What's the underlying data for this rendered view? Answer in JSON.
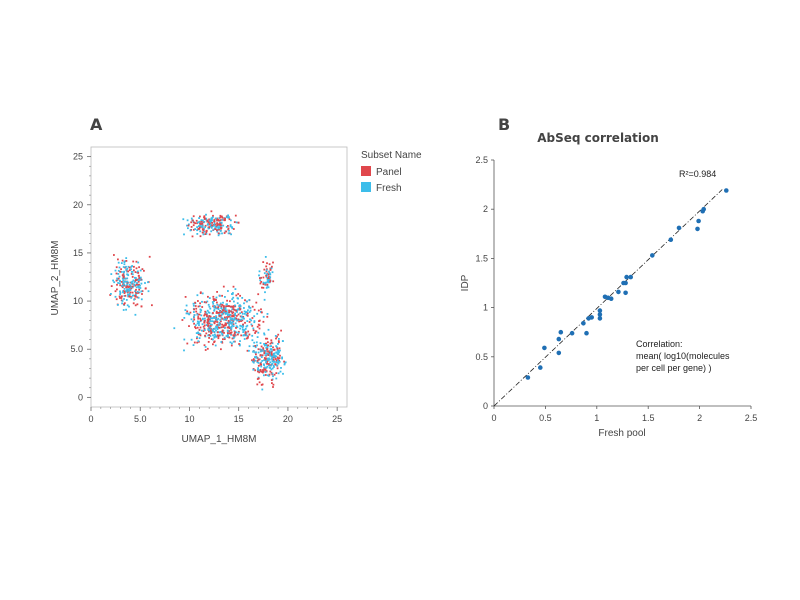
{
  "panels": {
    "a_label": "A",
    "b_label": "B"
  },
  "chart_data": [
    {
      "type": "scatter",
      "title": "",
      "xlabel": "UMAP_1_HM8M",
      "ylabel": "UMAP_2_HM8M",
      "xlim": [
        0,
        26
      ],
      "ylim": [
        -1,
        26
      ],
      "xticks": [
        0,
        5,
        10,
        15,
        20,
        25
      ],
      "xtick_labels": [
        "0",
        "5.0",
        "10",
        "15",
        "20",
        "25"
      ],
      "yticks": [
        0,
        5,
        10,
        15,
        20,
        25
      ],
      "ytick_labels": [
        "0",
        "5.0",
        "10",
        "15",
        "20",
        "25"
      ],
      "legend": {
        "title": "Subset Name",
        "position": "right",
        "entries": [
          {
            "name": "Panel",
            "color": "#e0474c"
          },
          {
            "name": "Fresh",
            "color": "#3cbdea"
          }
        ]
      },
      "clusters": [
        {
          "cx": 3.9,
          "cy": 11.8,
          "sx": 1.4,
          "sy": 2.0,
          "n": 260
        },
        {
          "cx": 12.2,
          "cy": 17.9,
          "sx": 2.1,
          "sy": 0.9,
          "n": 230
        },
        {
          "cx": 13.5,
          "cy": 8.0,
          "sx": 3.1,
          "sy": 2.2,
          "n": 650
        },
        {
          "cx": 18.0,
          "cy": 4.0,
          "sx": 1.3,
          "sy": 2.0,
          "n": 280
        },
        {
          "cx": 17.9,
          "cy": 12.5,
          "sx": 0.6,
          "sy": 1.3,
          "n": 70
        }
      ]
    },
    {
      "type": "scatter",
      "title": "AbSeq correlation",
      "xlabel": "Fresh pool",
      "ylabel": "IDP",
      "xlim": [
        0,
        2.5
      ],
      "ylim": [
        0,
        2.5
      ],
      "xticks": [
        0,
        0.5,
        1,
        1.5,
        2,
        2.5
      ],
      "xtick_labels": [
        "0",
        "0.5",
        "1",
        "1.5",
        "2",
        "2.5"
      ],
      "yticks": [
        0,
        0.5,
        1,
        1.5,
        2,
        2.5
      ],
      "ytick_labels": [
        "0",
        "0.5",
        "1",
        "1.5",
        "2",
        "2.5"
      ],
      "point_color": "#1f6fb4",
      "points": [
        [
          0.33,
          0.29
        ],
        [
          0.45,
          0.39
        ],
        [
          0.49,
          0.59
        ],
        [
          0.63,
          0.54
        ],
        [
          0.63,
          0.68
        ],
        [
          0.65,
          0.75
        ],
        [
          0.76,
          0.74
        ],
        [
          0.87,
          0.84
        ],
        [
          0.9,
          0.74
        ],
        [
          0.92,
          0.89
        ],
        [
          0.95,
          0.9
        ],
        [
          1.03,
          0.89
        ],
        [
          1.03,
          0.93
        ],
        [
          1.03,
          0.97
        ],
        [
          1.08,
          1.11
        ],
        [
          1.11,
          1.1
        ],
        [
          1.14,
          1.09
        ],
        [
          1.21,
          1.16
        ],
        [
          1.26,
          1.25
        ],
        [
          1.28,
          1.15
        ],
        [
          1.28,
          1.25
        ],
        [
          1.29,
          1.31
        ],
        [
          1.33,
          1.31
        ],
        [
          1.54,
          1.53
        ],
        [
          1.72,
          1.69
        ],
        [
          1.8,
          1.81
        ],
        [
          1.98,
          1.8
        ],
        [
          1.99,
          1.88
        ],
        [
          2.03,
          1.98
        ],
        [
          2.04,
          2.0
        ],
        [
          2.26,
          2.19
        ]
      ],
      "fit_line": [
        [
          0,
          0
        ],
        [
          2.22,
          2.2
        ]
      ],
      "r2_text": "R²=0.984",
      "annotation": [
        "Correlation:",
        "mean( log10(molecules",
        "per cell per gene) )"
      ]
    }
  ]
}
